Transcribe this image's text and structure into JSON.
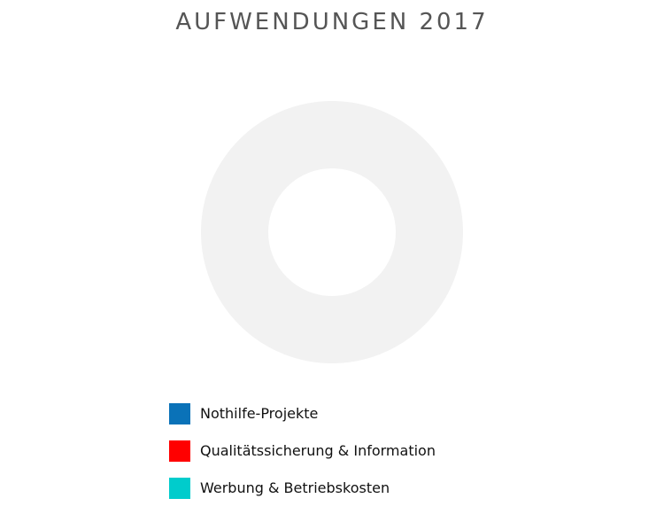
{
  "chart_data": {
    "type": "pie",
    "title": "AUFWENDUNGEN 2017",
    "categories": [
      "Nothilfe-Projekte",
      "Qualitätssicherung & Information",
      "Werbung & Betriebskosten"
    ],
    "colors": [
      "#0a72b8",
      "#ff0000",
      "#00cccc"
    ],
    "ring_color": "#f2f2f2",
    "legend_position": "bottom-left"
  }
}
